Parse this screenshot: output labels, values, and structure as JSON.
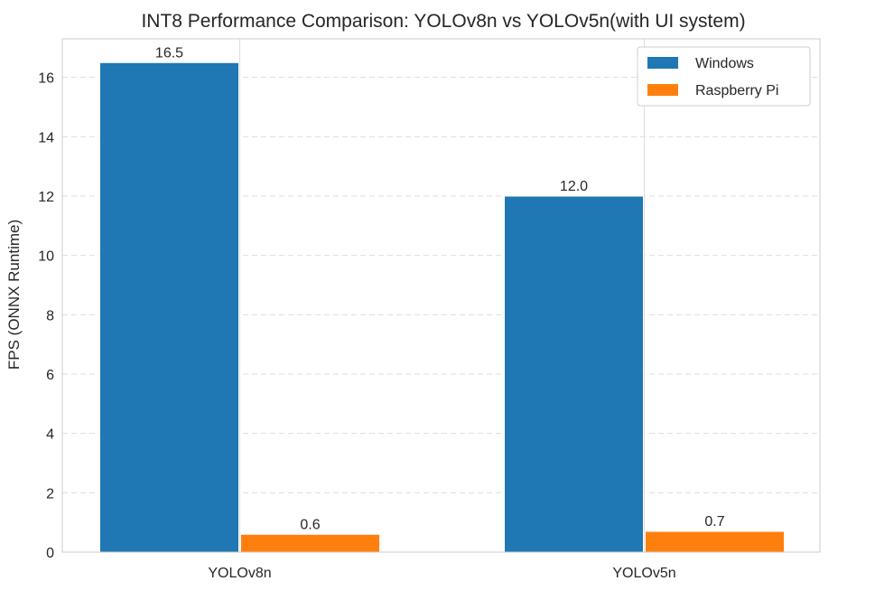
{
  "chart_data": {
    "type": "bar",
    "title": "INT8 Performance Comparison: YOLOv8n vs YOLOv5n(with UI system)",
    "xlabel": "",
    "ylabel": "FPS (ONNX Runtime)",
    "categories": [
      "YOLOv8n",
      "YOLOv5n"
    ],
    "series": [
      {
        "name": "Windows",
        "values": [
          16.5,
          12.0
        ],
        "labels": [
          "16.5",
          "12.0"
        ],
        "color": "#1f77b4"
      },
      {
        "name": "Raspberry Pi",
        "values": [
          0.6,
          0.7
        ],
        "labels": [
          "0.6",
          "0.7"
        ],
        "color": "#ff7f0e"
      }
    ],
    "ylim": [
      0,
      17.3
    ],
    "yticks": [
      0,
      2,
      4,
      6,
      8,
      10,
      12,
      14,
      16
    ],
    "grid": "y-dashed",
    "legend_position": "top-right"
  }
}
